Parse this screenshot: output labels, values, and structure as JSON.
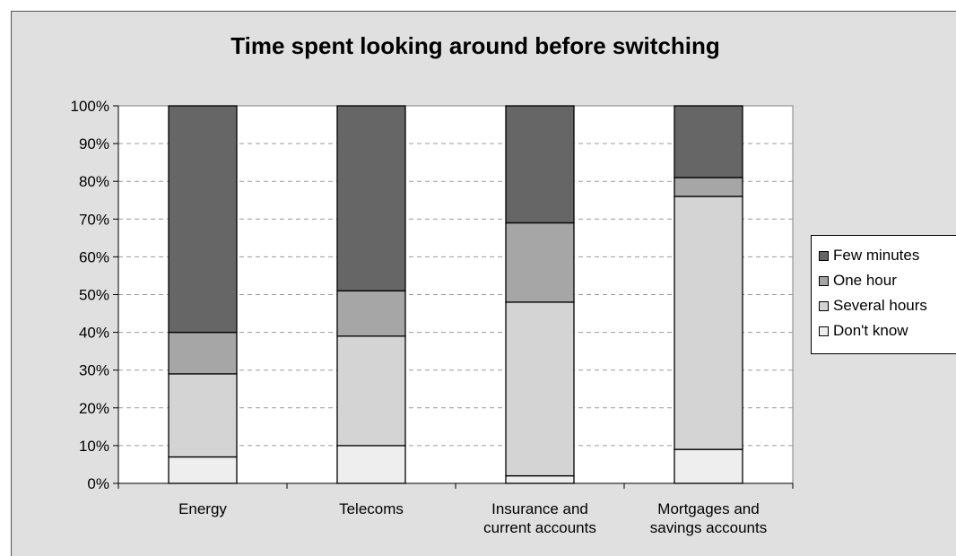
{
  "chart_data": {
    "type": "bar",
    "stacked": true,
    "title": "Time spent looking around before switching",
    "categories": [
      [
        "Energy"
      ],
      [
        "Telecoms"
      ],
      [
        "Insurance and",
        "current accounts"
      ],
      [
        "Mortgages and",
        "savings accounts"
      ]
    ],
    "series": [
      {
        "name": "Don't know",
        "color": "#eeeeee",
        "values": [
          7,
          10,
          2,
          9
        ]
      },
      {
        "name": "Several hours",
        "color": "#d4d4d4",
        "values": [
          22,
          29,
          46,
          67
        ]
      },
      {
        "name": "One hour",
        "color": "#a6a6a6",
        "values": [
          11,
          12,
          21,
          5
        ]
      },
      {
        "name": "Few minutes",
        "color": "#666666",
        "values": [
          60,
          49,
          31,
          19
        ]
      }
    ],
    "legend_order": [
      "Few minutes",
      "One hour",
      "Several hours",
      "Don't know"
    ],
    "yticks": [
      "0%",
      "10%",
      "20%",
      "30%",
      "40%",
      "50%",
      "60%",
      "70%",
      "80%",
      "90%",
      "100%"
    ],
    "ylim": [
      0,
      100
    ],
    "grid": true,
    "legend_position": "right"
  }
}
